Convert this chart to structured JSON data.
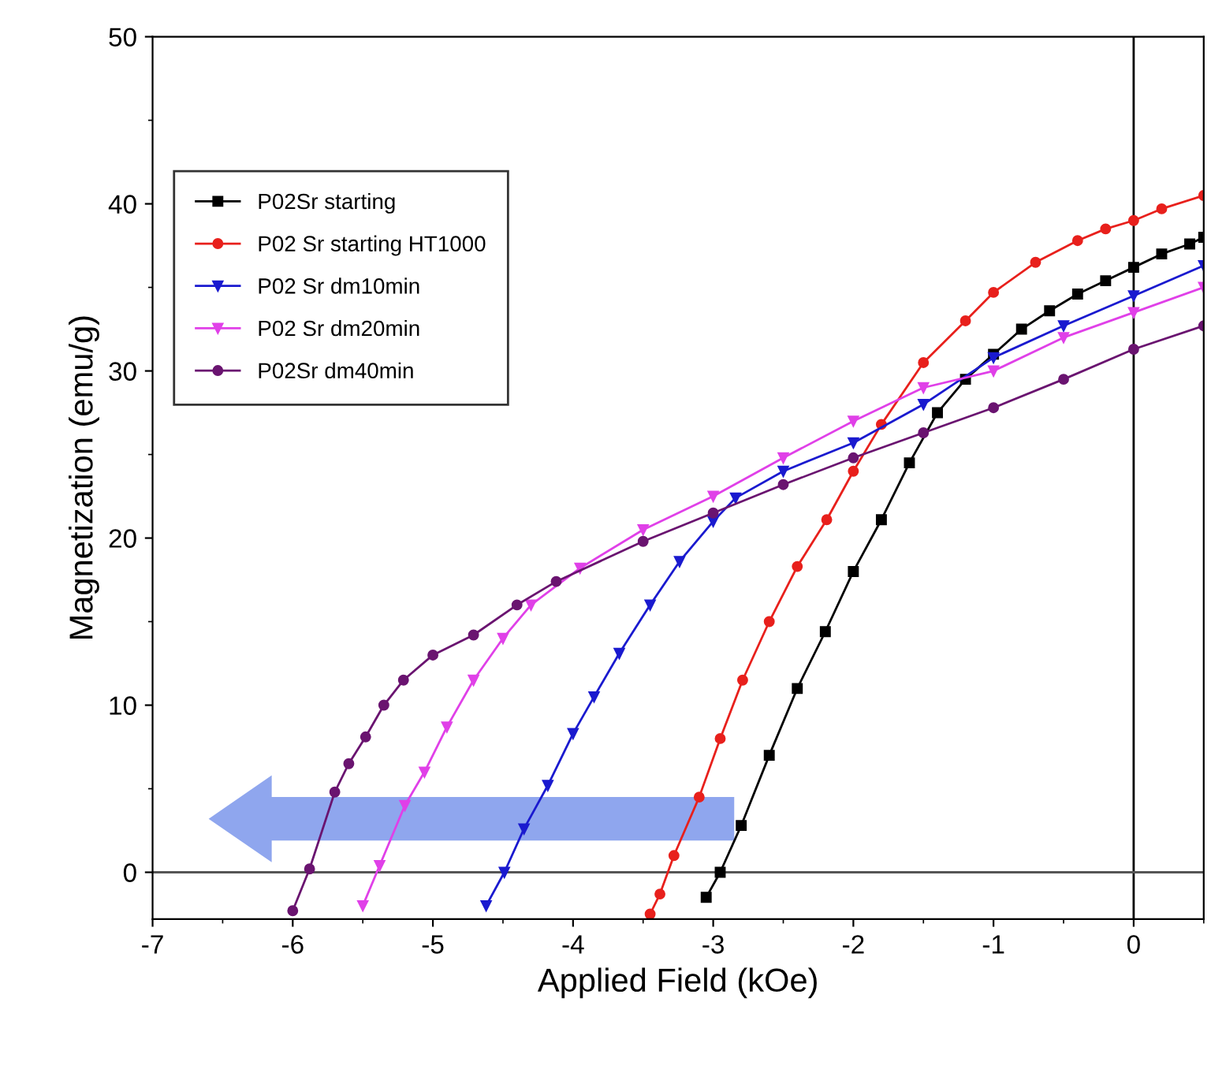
{
  "chart_data": {
    "type": "line",
    "xlabel": "Applied Field (kOe)",
    "ylabel": "Magnetization (emu/g)",
    "xlim": [
      -7,
      0.5
    ],
    "xticks": [
      -7,
      -6,
      -5,
      -4,
      -3,
      -2,
      -1,
      0
    ],
    "ylim": [
      -2.8,
      50
    ],
    "yticks": [
      0,
      10,
      20,
      30,
      40,
      50
    ],
    "grid": false,
    "legend": "top left",
    "line_style": "solid",
    "ref_lines": [
      {
        "axis": "x",
        "value": 0,
        "color": "#000000"
      },
      {
        "axis": "y",
        "value": 0,
        "color": "#555555"
      }
    ],
    "series": [
      {
        "name": "P02Sr starting",
        "color": "#000000",
        "marker": "square",
        "x": [
          -3.05,
          -2.95,
          -2.8,
          -2.6,
          -2.4,
          -2.2,
          -2.0,
          -1.8,
          -1.6,
          -1.4,
          -1.2,
          -1.0,
          -0.8,
          -0.6,
          -0.4,
          -0.2,
          0,
          0.2,
          0.4,
          0.5
        ],
        "values": [
          -1.5,
          0,
          2.8,
          7,
          11,
          14.4,
          18,
          21.1,
          24.5,
          27.5,
          29.5,
          31,
          32.5,
          33.6,
          34.6,
          35.4,
          36.2,
          37,
          37.6,
          38
        ]
      },
      {
        "name": "P02 Sr starting HT1000",
        "color": "#e8201c",
        "marker": "circle",
        "x": [
          -3.45,
          -3.38,
          -3.28,
          -3.1,
          -2.95,
          -2.79,
          -2.6,
          -2.4,
          -2.19,
          -2.0,
          -1.8,
          -1.5,
          -1.2,
          -1.0,
          -0.7,
          -0.4,
          -0.2,
          0,
          0.2,
          0.5
        ],
        "values": [
          -2.5,
          -1.3,
          1,
          4.5,
          8,
          11.5,
          15,
          18.3,
          21.1,
          24,
          26.8,
          30.5,
          33,
          34.7,
          36.5,
          37.8,
          38.5,
          39,
          39.7,
          40.5
        ]
      },
      {
        "name": "P02 Sr dm10min",
        "color": "#1a1acf",
        "marker": "triangle",
        "x": [
          -4.62,
          -4.49,
          -4.35,
          -4.18,
          -4.0,
          -3.85,
          -3.67,
          -3.45,
          -3.24,
          -3.0,
          -2.84,
          -2.5,
          -2.0,
          -1.5,
          -1.0,
          -0.5,
          0,
          0.5
        ],
        "values": [
          -2,
          0,
          2.6,
          5.2,
          8.3,
          10.5,
          13.1,
          16,
          18.6,
          21,
          22.4,
          24,
          25.7,
          28,
          30.8,
          32.7,
          34.5,
          36.3
        ]
      },
      {
        "name": "P02 Sr dm20min",
        "color": "#e040e8",
        "marker": "triangle",
        "x": [
          -5.5,
          -5.38,
          -5.2,
          -5.06,
          -4.9,
          -4.71,
          -4.5,
          -4.3,
          -3.95,
          -3.5,
          -3.0,
          -2.5,
          -2.0,
          -1.5,
          -1.0,
          -0.5,
          0,
          0.5
        ],
        "values": [
          -2,
          0.4,
          4,
          6,
          8.7,
          11.5,
          14,
          16,
          18.2,
          20.5,
          22.5,
          24.8,
          27,
          29,
          30.0,
          32,
          33.5,
          35
        ]
      },
      {
        "name": "P02Sr dm40min",
        "color": "#6a1470",
        "marker": "circle",
        "x": [
          -6.0,
          -5.88,
          -5.7,
          -5.6,
          -5.48,
          -5.35,
          -5.21,
          -5.0,
          -4.71,
          -4.4,
          -4.12,
          -3.5,
          -3.0,
          -2.5,
          -2.0,
          -1.5,
          -1.0,
          -0.5,
          0,
          0.5
        ],
        "values": [
          -2.3,
          0.2,
          4.8,
          6.5,
          8.1,
          10,
          11.5,
          13,
          14.2,
          16,
          17.4,
          19.8,
          21.5,
          23.2,
          24.8,
          26.3,
          27.8,
          29.5,
          31.3,
          32.7
        ]
      }
    ]
  }
}
